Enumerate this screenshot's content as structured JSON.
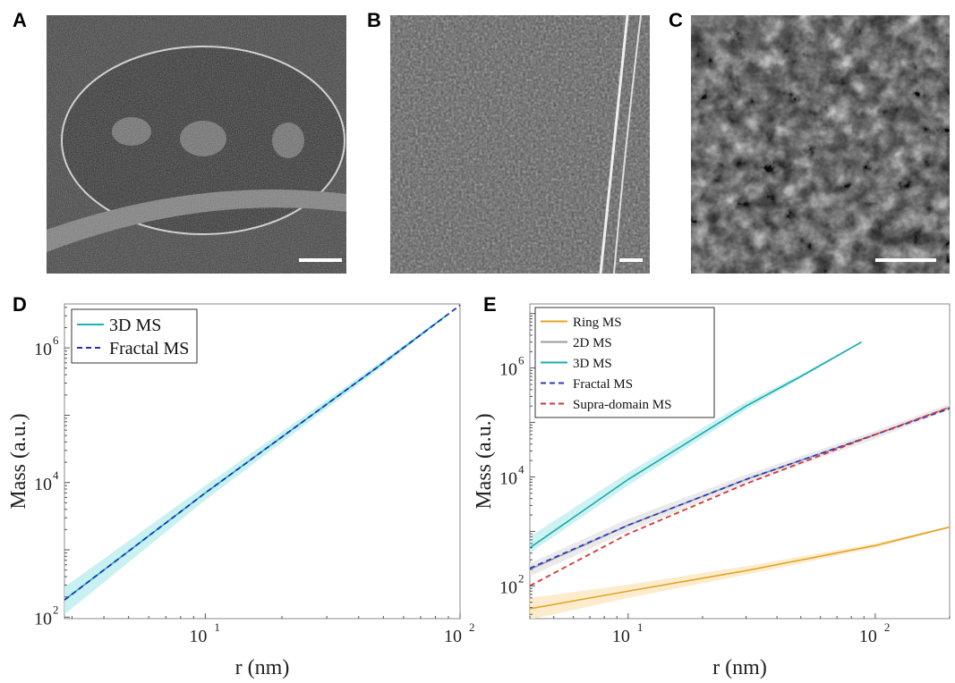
{
  "panels": {
    "A": {
      "letter": "A"
    },
    "B": {
      "letter": "B"
    },
    "C": {
      "letter": "C"
    },
    "D": {
      "letter": "D"
    },
    "E": {
      "letter": "E"
    }
  },
  "chart_data": [
    {
      "panel": "D",
      "type": "line",
      "xlabel": "r (nm)",
      "ylabel": "Mass (a.u.)",
      "xscale": "log",
      "yscale": "log",
      "xlim": [
        2.8,
        100
      ],
      "ylim": [
        95,
        4500000
      ],
      "xticks": [
        {
          "value": 10,
          "base": "10",
          "exp": "1"
        },
        {
          "value": 100,
          "base": "10",
          "exp": "2"
        }
      ],
      "yticks": [
        {
          "value": 100,
          "base": "10",
          "exp": "2"
        },
        {
          "value": 10000,
          "base": "10",
          "exp": "4"
        },
        {
          "value": 1000000,
          "base": "10",
          "exp": "6"
        }
      ],
      "legend": "top-left",
      "series": [
        {
          "name": "3D MS",
          "style": "solid",
          "color": "#17b3b8",
          "band": true,
          "band_color": "#bfeeee",
          "points": [
            [
              2.8,
              180
            ],
            [
              10,
              7000
            ],
            [
              50,
              600000
            ],
            [
              88,
              3000000
            ]
          ],
          "band_lower": [
            [
              2.8,
              110
            ],
            [
              10,
              5500
            ],
            [
              50,
              540000
            ],
            [
              88,
              2900000
            ]
          ],
          "band_upper": [
            [
              2.8,
              280
            ],
            [
              10,
              9000
            ],
            [
              50,
              660000
            ],
            [
              88,
              3100000
            ]
          ]
        },
        {
          "name": "Fractal MS",
          "style": "dashed",
          "color": "#1f2fb5",
          "band": false,
          "points": [
            [
              2.8,
              180
            ],
            [
              10,
              7000
            ],
            [
              50,
              600000
            ],
            [
              100,
              4300000
            ]
          ]
        }
      ]
    },
    {
      "panel": "E",
      "type": "line",
      "xlabel": "r (nm)",
      "ylabel": "Mass (a.u.)",
      "xscale": "log",
      "yscale": "log",
      "xlim": [
        4,
        200
      ],
      "ylim": [
        25,
        15000000
      ],
      "xticks": [
        {
          "value": 10,
          "base": "10",
          "exp": "1"
        },
        {
          "value": 100,
          "base": "10",
          "exp": "2"
        }
      ],
      "yticks": [
        {
          "value": 100,
          "base": "10",
          "exp": "2"
        },
        {
          "value": 10000,
          "base": "10",
          "exp": "4"
        },
        {
          "value": 1000000,
          "base": "10",
          "exp": "6"
        }
      ],
      "legend": "top-left",
      "series": [
        {
          "name": "Ring MS",
          "style": "solid",
          "color": "#e0a526",
          "band": true,
          "band_color": "#fbe9c4",
          "points": [
            [
              4,
              38
            ],
            [
              10,
              80
            ],
            [
              30,
              190
            ],
            [
              100,
              550
            ],
            [
              200,
              1200
            ]
          ],
          "band_lower": [
            [
              4,
              24
            ],
            [
              10,
              60
            ],
            [
              30,
              160
            ],
            [
              100,
              500
            ],
            [
              200,
              1150
            ]
          ],
          "band_upper": [
            [
              4,
              60
            ],
            [
              10,
              105
            ],
            [
              30,
              230
            ],
            [
              100,
              600
            ],
            [
              200,
              1250
            ]
          ]
        },
        {
          "name": "2D MS",
          "style": "solid",
          "color": "#9a9a9a",
          "band": true,
          "band_color": "#e6e6e6",
          "points": [
            [
              4,
              200
            ],
            [
              10,
              1300
            ],
            [
              30,
              9000
            ],
            [
              100,
              60000
            ],
            [
              200,
              190000
            ]
          ],
          "band_lower": [
            [
              4,
              150
            ],
            [
              10,
              1000
            ],
            [
              30,
              7500
            ],
            [
              100,
              50000
            ],
            [
              200,
              170000
            ]
          ],
          "band_upper": [
            [
              4,
              260
            ],
            [
              10,
              1700
            ],
            [
              30,
              11000
            ],
            [
              100,
              70000
            ],
            [
              200,
              220000
            ]
          ]
        },
        {
          "name": "3D MS",
          "style": "solid",
          "color": "#17a9ad",
          "band": true,
          "band_color": "#c6efef",
          "points": [
            [
              4,
              500
            ],
            [
              10,
              9000
            ],
            [
              30,
              200000
            ],
            [
              50,
              700000
            ],
            [
              88,
              3000000
            ]
          ],
          "band_lower": [
            [
              4,
              400
            ],
            [
              10,
              7000
            ],
            [
              30,
              170000
            ],
            [
              50,
              650000
            ],
            [
              88,
              2900000
            ]
          ],
          "band_upper": [
            [
              4,
              800
            ],
            [
              10,
              12000
            ],
            [
              30,
              240000
            ],
            [
              50,
              760000
            ],
            [
              88,
              3100000
            ]
          ]
        },
        {
          "name": "Fractal MS",
          "style": "dashed",
          "color": "#2b39c4",
          "band": false,
          "points": [
            [
              4,
              210
            ],
            [
              10,
              1300
            ],
            [
              30,
              9000
            ],
            [
              100,
              60000
            ],
            [
              200,
              180000
            ]
          ]
        },
        {
          "name": "Supra-domain MS",
          "style": "dashed",
          "color": "#d93333",
          "band": false,
          "points": [
            [
              4,
              100
            ],
            [
              10,
              900
            ],
            [
              30,
              7500
            ],
            [
              100,
              60000
            ],
            [
              200,
              190000
            ]
          ]
        }
      ]
    }
  ]
}
